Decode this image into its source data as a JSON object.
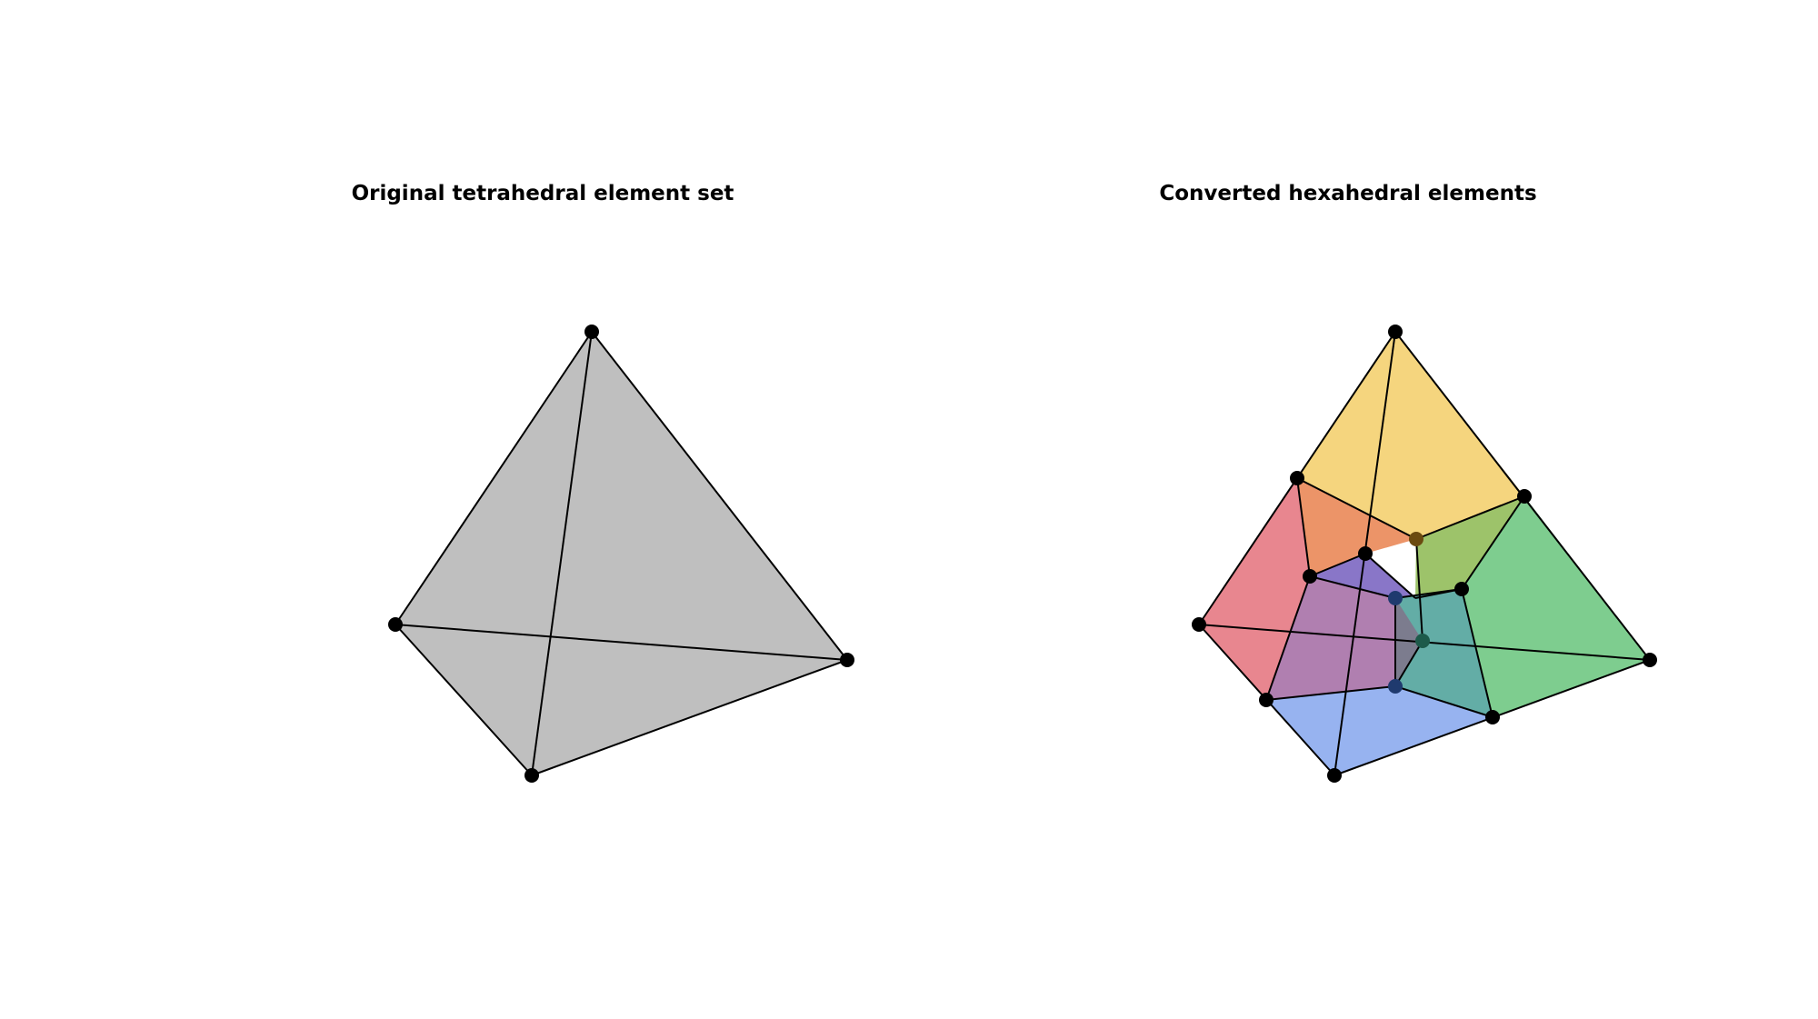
{
  "panels": {
    "left": {
      "title": "Original tetrahedral element set",
      "fill_color": "#bfbfbf"
    },
    "right": {
      "title": "Converted hexahedral elements"
    }
  },
  "colors": {
    "edge": "#000000",
    "vertex": "#000000",
    "hex_top": "#f5d57e",
    "hex_left": "#e8868f",
    "hex_right": "#7ecd8f",
    "hex_front": "#97b3f0",
    "hex_center": "#8976c8",
    "overlap_top_left": "#ec9468",
    "overlap_top_right": "#9dc36a",
    "overlap_left_front": "#b07fb0",
    "overlap_right_front": "#63ada6"
  }
}
